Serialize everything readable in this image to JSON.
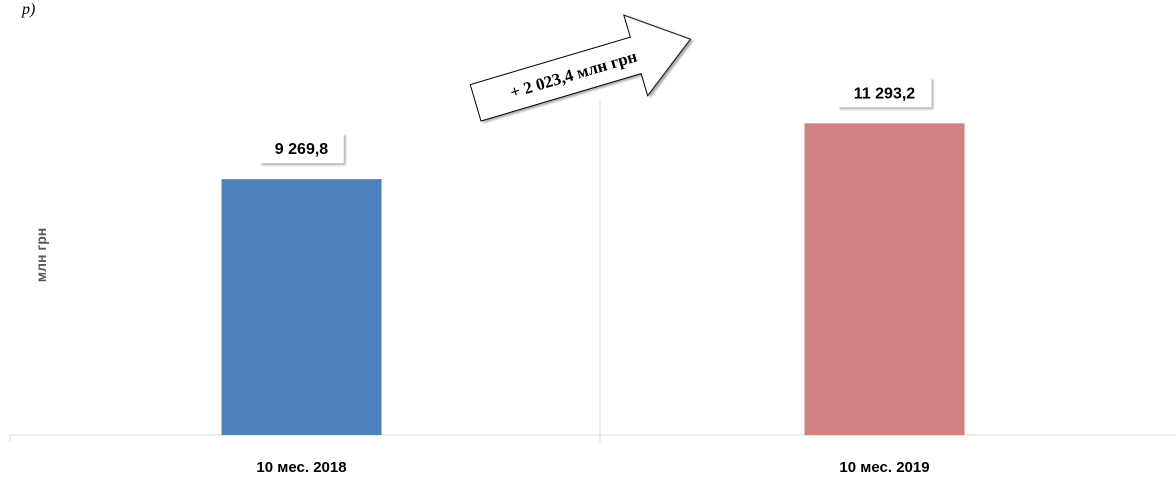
{
  "corner_fragment": "p)",
  "chart_data": {
    "type": "bar",
    "categories": [
      "10 мес. 2018",
      "10 мес. 2019"
    ],
    "values": [
      9269.8,
      11293.2
    ],
    "value_labels": [
      "9 269,8",
      "11 293,2"
    ],
    "ylabel": "млн грн",
    "ylim": [
      0,
      12500
    ],
    "colors": [
      "#4f81bd",
      "#d38080"
    ],
    "annotation": "+ 2 023,4 млн грн",
    "grid": false,
    "legend": "none"
  }
}
